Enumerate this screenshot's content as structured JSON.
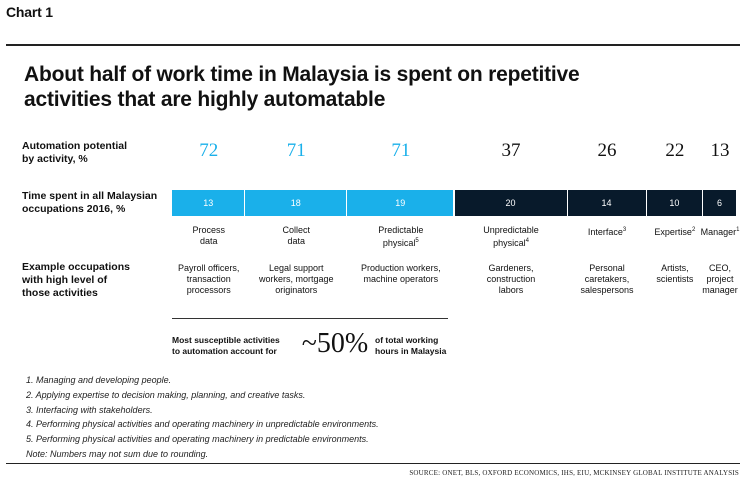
{
  "header": {
    "chart_label": "Chart 1",
    "title_line1": "About half of work time in Malaysia is spent on repetitive",
    "title_line2": "activities that are highly automatable"
  },
  "row_labels": {
    "potential_line1": "Automation potential",
    "potential_line2": "by activity, %",
    "time_line1": "Time spent in all Malaysian",
    "time_line2": "occupations 2016, %",
    "occupation_line1": "Example occupations",
    "occupation_line2": "with high level of",
    "occupation_line3": "those activities"
  },
  "chart_data": {
    "type": "bar",
    "categories": [
      "Process data",
      "Collect data",
      "Predictable physical",
      "Unpredictable physical",
      "Interface",
      "Expertise",
      "Manager"
    ],
    "series": [
      {
        "name": "Automation potential by activity, %",
        "values": [
          72,
          71,
          71,
          37,
          26,
          22,
          13
        ]
      },
      {
        "name": "Time spent in all Malaysian occupations 2016, %",
        "values": [
          13,
          18,
          19,
          20,
          14,
          10,
          6
        ]
      }
    ],
    "colors": [
      "#1ab0ea",
      "#1ab0ea",
      "#1ab0ea",
      "#081a2b",
      "#081a2b",
      "#081a2b",
      "#081a2b"
    ]
  },
  "activities": [
    {
      "line1": "Process",
      "line2": "data",
      "sup": ""
    },
    {
      "line1": "Collect",
      "line2": "data",
      "sup": ""
    },
    {
      "line1": "Predictable",
      "line2": "physical",
      "sup": "5"
    },
    {
      "line1": "Unpredictable",
      "line2": "physical",
      "sup": "4"
    },
    {
      "line1": "Interface",
      "line2": "",
      "sup": "3"
    },
    {
      "line1": "Expertise",
      "line2": "",
      "sup": "2"
    },
    {
      "line1": "Manager",
      "line2": "",
      "sup": "1"
    }
  ],
  "occupations": [
    [
      "Payroll officers,",
      "transaction",
      "processors"
    ],
    [
      "Legal support",
      "workers, mortgage",
      "originators"
    ],
    [
      "Production workers,",
      "machine operators"
    ],
    [
      "Gardeners,",
      "construction",
      "labors"
    ],
    [
      "Personal",
      "caretakers,",
      "salespersons"
    ],
    [
      "Artists,",
      "scientists"
    ],
    [
      "CEO,",
      "project",
      "manager"
    ]
  ],
  "summary": {
    "left_line1": "Most susceptible activities",
    "left_line2": "to automation account for",
    "big_number": "~50%",
    "right_line1": "of total working",
    "right_line2": "hours in Malaysia"
  },
  "notes": [
    "1. Managing and developing people.",
    "2. Applying expertise to decision making, planning, and creative tasks.",
    "3. Interfacing with stakeholders.",
    "4. Performing physical activities and operating machinery in unpredictable environments.",
    "5. Performing physical activities and operating machinery in predictable environments.",
    "Note: Numbers may not sum due to rounding."
  ],
  "source": "SOURCE: ONET, BLS, OXFORD ECONOMICS, IHS, EIU, MCKINSEY GLOBAL INSTITUTE ANALYSIS",
  "colors": {
    "highlight_blue": "#1ab0ea",
    "dark_navy": "#081a2b"
  }
}
